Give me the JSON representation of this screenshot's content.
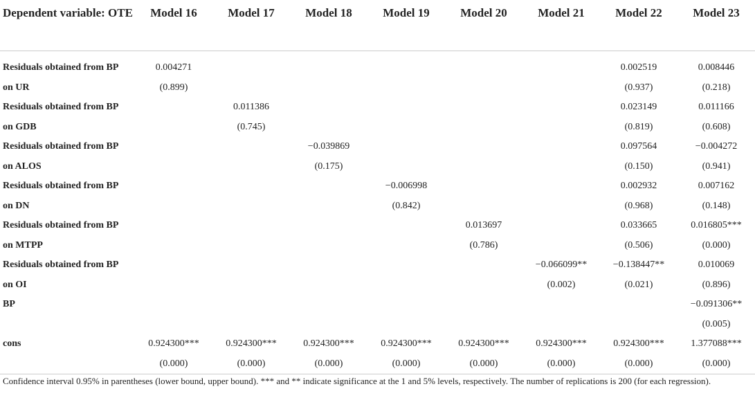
{
  "table": {
    "header": [
      "Dependent variable: OTE",
      "Model 16",
      "Model 17",
      "Model 18",
      "Model 19",
      "Model 20",
      "Model 21",
      "Model 22",
      "Model 23"
    ],
    "rows": [
      [
        "Residuals obtained from BP",
        "0.004271",
        null,
        null,
        null,
        null,
        null,
        "0.002519",
        "0.008446"
      ],
      [
        "on UR",
        "(0.899)",
        null,
        null,
        null,
        null,
        null,
        "(0.937)",
        "(0.218)"
      ],
      [
        "Residuals obtained from BP",
        null,
        "0.011386",
        null,
        null,
        null,
        null,
        "0.023149",
        "0.011166"
      ],
      [
        "on GDB",
        null,
        "(0.745)",
        null,
        null,
        null,
        null,
        "(0.819)",
        "(0.608)"
      ],
      [
        "Residuals obtained from BP",
        null,
        null,
        "−0.039869",
        null,
        null,
        null,
        "0.097564",
        "−0.004272"
      ],
      [
        "on ALOS",
        null,
        null,
        "(0.175)",
        null,
        null,
        null,
        "(0.150)",
        "(0.941)"
      ],
      [
        "Residuals obtained from BP",
        null,
        null,
        null,
        "−0.006998",
        null,
        null,
        "0.002932",
        "0.007162"
      ],
      [
        "on DN",
        null,
        null,
        null,
        "(0.842)",
        null,
        null,
        "(0.968)",
        "(0.148)"
      ],
      [
        "Residuals obtained from BP",
        null,
        null,
        null,
        null,
        "0.013697",
        null,
        "0.033665",
        "0.016805***"
      ],
      [
        "on MTPP",
        null,
        null,
        null,
        null,
        "(0.786)",
        null,
        "(0.506)",
        "(0.000)"
      ],
      [
        "Residuals obtained from BP",
        null,
        null,
        null,
        null,
        null,
        "−0.066099**",
        "−0.138447**",
        "0.010069"
      ],
      [
        "on OI",
        null,
        null,
        null,
        null,
        null,
        "(0.002)",
        "(0.021)",
        "(0.896)"
      ],
      [
        "BP",
        null,
        null,
        null,
        null,
        null,
        null,
        null,
        "−0.091306**"
      ],
      [
        null,
        null,
        null,
        null,
        null,
        null,
        null,
        null,
        "(0.005)"
      ],
      [
        "cons",
        "0.924300***",
        "0.924300***",
        "0.924300***",
        "0.924300***",
        "0.924300***",
        "0.924300***",
        "0.924300***",
        "1.377088***"
      ],
      [
        null,
        "(0.000)",
        "(0.000)",
        "(0.000)",
        "(0.000)",
        "(0.000)",
        "(0.000)",
        "(0.000)",
        "(0.000)"
      ]
    ],
    "footnote": "Confidence interval 0.95% in parentheses (lower bound, upper bound). *** and ** indicate significance at the 1 and 5% levels, respectively. The number of replications is 200 (for each regression)."
  }
}
